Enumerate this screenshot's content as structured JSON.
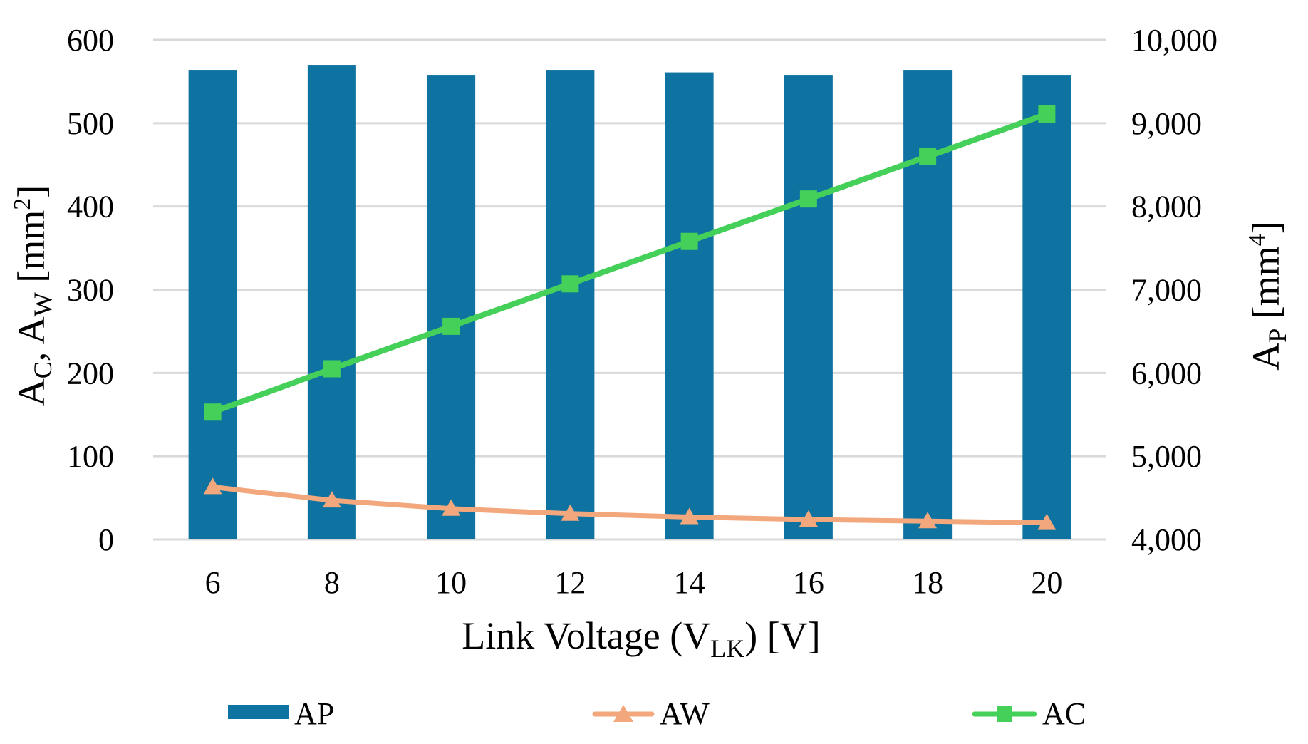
{
  "chart_data": {
    "type": "bar",
    "title": "",
    "categories": [
      "6",
      "8",
      "10",
      "12",
      "14",
      "16",
      "18",
      "20"
    ],
    "series": [
      {
        "name": "AP",
        "type": "bar",
        "axis": "right",
        "color": "#0e73a0",
        "values": [
          9640,
          9700,
          9580,
          9640,
          9610,
          9580,
          9640,
          9580
        ]
      },
      {
        "name": "AW",
        "type": "line",
        "marker": "triangle",
        "axis": "left",
        "color": "#f3a77d",
        "values": [
          63,
          47,
          37,
          31,
          27,
          24,
          22,
          20
        ]
      },
      {
        "name": "AC",
        "type": "line",
        "marker": "square",
        "axis": "left",
        "color": "#45d05a",
        "values": [
          153,
          205,
          256,
          307,
          358,
          409,
          460,
          511
        ]
      }
    ],
    "xlabel": {
      "main": "Link Voltage (V",
      "sub": "LK",
      "tail": ") [V]"
    },
    "ylabel_left": {
      "p1": "A",
      "s1": "C",
      "p2": ", A",
      "s2": "W",
      "p3": " [mm",
      "sup": "2",
      "p4": "]"
    },
    "ylabel_right": {
      "p1": "A",
      "s1": "P",
      "p2": " [mm",
      "sup": "4",
      "p3": "]"
    },
    "ylim_left": [
      0,
      600
    ],
    "ylim_right": [
      4000,
      10000
    ],
    "yticks_left": [
      "0",
      "100",
      "200",
      "300",
      "400",
      "500",
      "600"
    ],
    "yticks_right": [
      "4,000",
      "5,000",
      "6,000",
      "7,000",
      "8,000",
      "9,000",
      "10,000"
    ],
    "grid": true,
    "legend_position": "bottom"
  }
}
